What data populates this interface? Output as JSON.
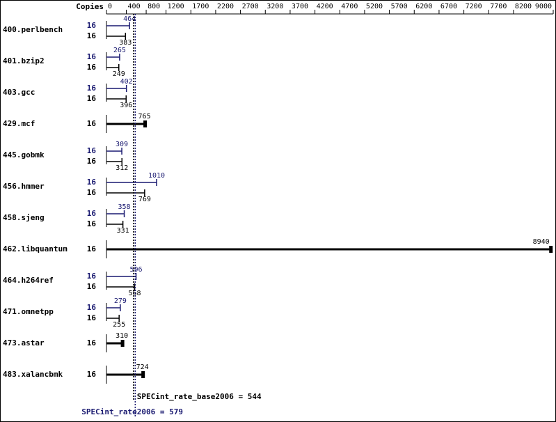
{
  "chart_data": {
    "type": "bar",
    "orientation": "horizontal",
    "copies_label": "Copies",
    "categories": [
      "400.perlbench",
      "401.bzip2",
      "403.gcc",
      "429.mcf",
      "445.gobmk",
      "456.hmmer",
      "458.sjeng",
      "462.libquantum",
      "464.h264ref",
      "471.omnetpp",
      "473.astar",
      "483.xalancbmk"
    ],
    "series": [
      {
        "color": "#191970",
        "copies": [
          16,
          16,
          16,
          null,
          16,
          16,
          16,
          null,
          16,
          16,
          null,
          null
        ],
        "values": [
          464,
          265,
          402,
          null,
          309,
          1010,
          358,
          null,
          596,
          279,
          null,
          null
        ]
      },
      {
        "color": "#000000",
        "copies": [
          16,
          16,
          16,
          16,
          16,
          16,
          16,
          16,
          16,
          16,
          16,
          16
        ],
        "values": [
          383,
          249,
          396,
          765,
          312,
          769,
          331,
          8940,
          568,
          255,
          310,
          724
        ]
      }
    ],
    "xlim": [
      0,
      9000
    ],
    "xticks": [
      0,
      400,
      800,
      1200,
      1700,
      2200,
      2700,
      3200,
      3700,
      4200,
      4700,
      5200,
      5700,
      6200,
      6700,
      7200,
      7700,
      8200,
      9000
    ],
    "reference_lines": [
      {
        "label": "SPECint_rate_base2006 = 544",
        "value": 544,
        "color": "#000000"
      },
      {
        "label": "SPECint_rate2006 = 579",
        "value": 579,
        "color": "#191970"
      }
    ]
  }
}
